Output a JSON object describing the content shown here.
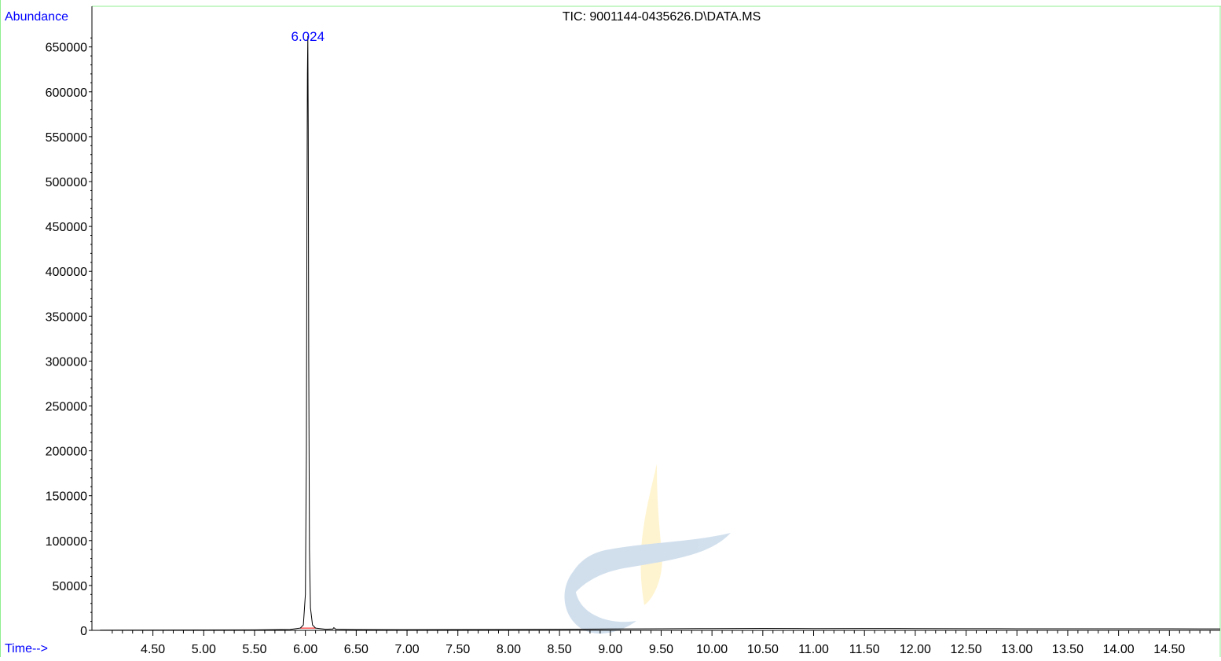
{
  "chart_data": {
    "type": "line",
    "title": "TIC: 9001144-0435626.D\\DATA.MS",
    "ylabel": "Abundance",
    "xlabel": "Time-->",
    "xlim": [
      3.98,
      15.0
    ],
    "ylim": [
      0,
      670000
    ],
    "x_ticks": [
      "4.50",
      "5.00",
      "5.50",
      "6.00",
      "6.50",
      "7.00",
      "7.50",
      "8.00",
      "8.50",
      "9.00",
      "9.50",
      "10.00",
      "10.50",
      "11.00",
      "11.50",
      "12.00",
      "12.50",
      "13.00",
      "13.50",
      "14.00",
      "14.50"
    ],
    "y_ticks": [
      "0",
      "50000",
      "100000",
      "150000",
      "200000",
      "250000",
      "300000",
      "350000",
      "400000",
      "450000",
      "500000",
      "550000",
      "600000",
      "650000"
    ],
    "peak_label": "6.024",
    "series": [
      {
        "x": [
          3.98,
          4.5,
          5.0,
          5.5,
          5.85,
          5.95,
          5.98,
          6.0,
          6.01,
          6.015,
          6.02,
          6.024,
          6.028,
          6.033,
          6.04,
          6.05,
          6.07,
          6.1,
          6.2,
          6.27,
          6.28,
          6.3,
          6.5,
          7.0,
          7.5,
          8.0,
          8.5,
          9.0,
          9.5,
          10.0,
          10.5,
          11.0,
          11.5,
          12.0,
          12.5,
          13.0,
          13.5,
          14.0,
          14.5,
          15.0
        ],
        "y": [
          200,
          300,
          400,
          500,
          1000,
          2500,
          6000,
          40000,
          200000,
          450000,
          620000,
          662000,
          560000,
          300000,
          90000,
          25000,
          6000,
          2500,
          1200,
          1500,
          3000,
          1200,
          900,
          800,
          900,
          1000,
          1200,
          1500,
          1800,
          2000,
          2200,
          2000,
          2100,
          2000,
          1900,
          1800,
          1800,
          1700,
          1700,
          1600
        ]
      }
    ],
    "colors": {
      "trace": "#000000",
      "labels": "#0000ff",
      "frame": "#90ee90",
      "baseline": "#ff0000"
    }
  }
}
